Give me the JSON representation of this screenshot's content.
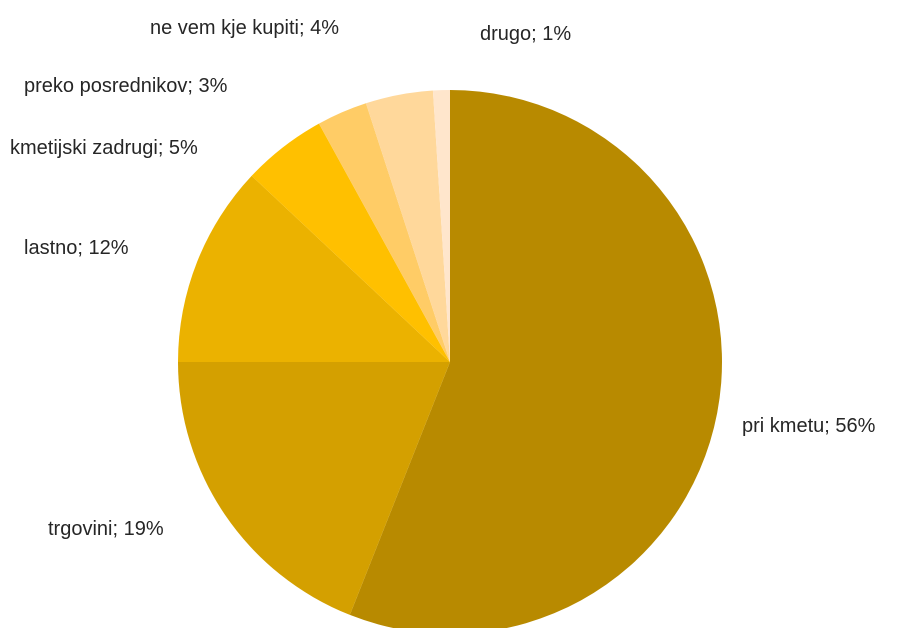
{
  "chart_data": {
    "type": "pie",
    "title": "",
    "start_angle_deg": 0,
    "direction": "clockwise",
    "slices": [
      {
        "label": "pri kmetu; 56%",
        "category": "pri kmetu",
        "value": 56,
        "color": "#B88A00"
      },
      {
        "label": "trgovini; 19%",
        "category": "trgovini",
        "value": 19,
        "color": "#D4A000"
      },
      {
        "label": "lastno; 12%",
        "category": "lastno",
        "value": 12,
        "color": "#EBB200"
      },
      {
        "label": "kmetijski  zadrugi; 5%",
        "category": "kmetijski zadrugi",
        "value": 5,
        "color": "#FFC000"
      },
      {
        "label": "preko posrednikov; 3%",
        "category": "preko posrednikov",
        "value": 3,
        "color": "#FFCC66"
      },
      {
        "label": "ne vem  kje kupiti; 4%",
        "category": "ne vem kje kupiti",
        "value": 4,
        "color": "#FFD89B"
      },
      {
        "label": "drugo; 1%",
        "category": "drugo",
        "value": 1,
        "color": "#FFE6CC"
      }
    ]
  }
}
